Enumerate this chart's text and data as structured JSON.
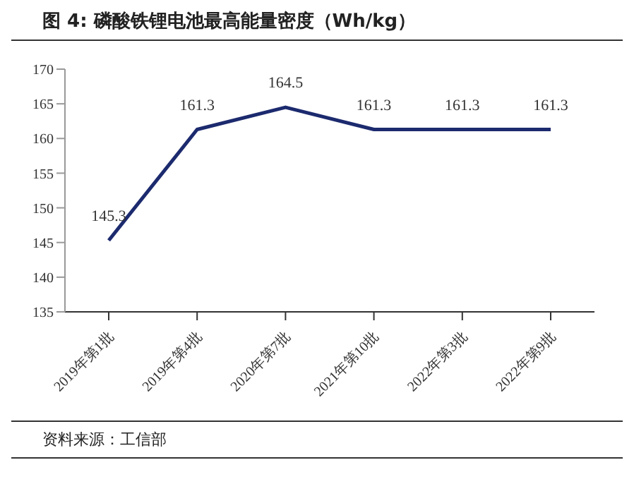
{
  "chart_data": {
    "type": "line",
    "title": "图 4:  磷酸铁锂电池最高能量密度（Wh/kg）",
    "categories": [
      "2019年第1批",
      "2019年第4批",
      "2020年第7批",
      "2021年第10批",
      "2022年第3批",
      "2022年第9批"
    ],
    "series": [
      {
        "color": "#1c2a6e",
        "values": [
          145.3,
          161.3,
          164.5,
          161.3,
          161.3,
          161.3
        ]
      }
    ],
    "ylim": [
      135,
      170
    ],
    "yticks": [
      135,
      140,
      145,
      150,
      155,
      160,
      165,
      170
    ],
    "data_labels": true,
    "grid": false,
    "legend": false,
    "marker": "none",
    "line_style": "solid",
    "annotations": [
      "资料来源：工信部"
    ]
  }
}
